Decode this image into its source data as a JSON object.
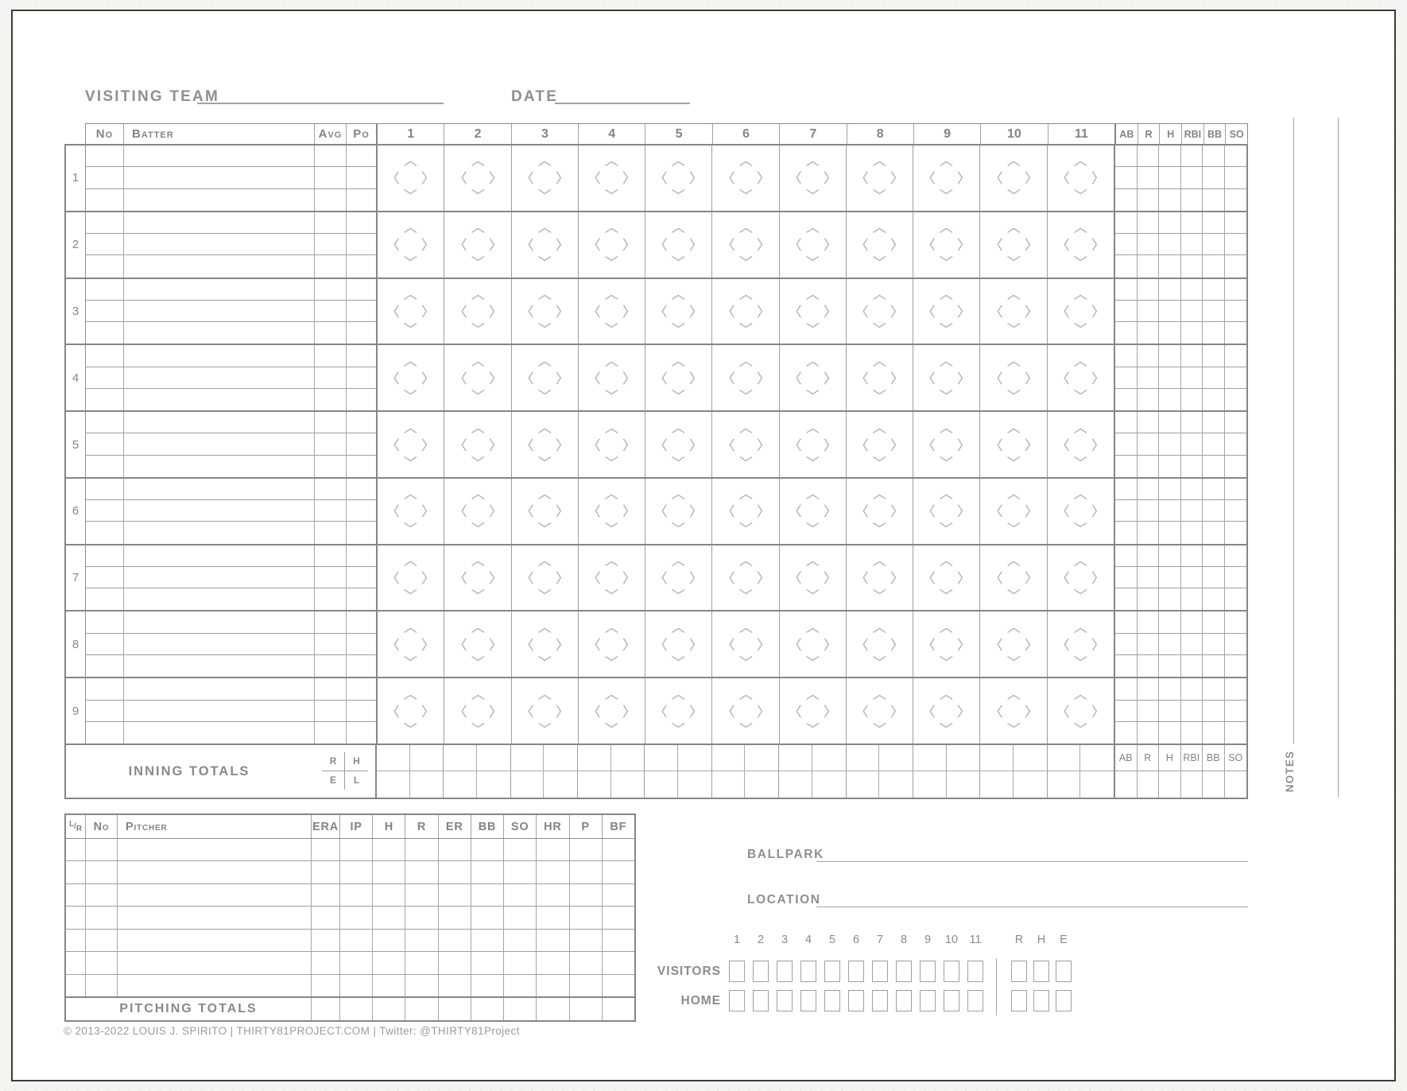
{
  "header": {
    "visiting_team_label": "VISITING TEAM",
    "date_label": "DATE"
  },
  "batting_table": {
    "column_headers": {
      "no": "No",
      "batter": "Batter",
      "avg": "Avg",
      "po": "Po"
    },
    "inning_headers": [
      "1",
      "2",
      "3",
      "4",
      "5",
      "6",
      "7",
      "8",
      "9",
      "10",
      "11"
    ],
    "stat_headers": [
      "AB",
      "R",
      "H",
      "RBI",
      "BB",
      "SO"
    ],
    "batting_order": [
      "1",
      "2",
      "3",
      "4",
      "5",
      "6",
      "7",
      "8",
      "9"
    ],
    "sub_rows_per_batter": 3,
    "inning_totals": {
      "label": "INNING TOTALS",
      "legend": {
        "top_left": "R",
        "top_right": "H",
        "bottom_left": "E",
        "bottom_right": "L"
      }
    }
  },
  "notes": {
    "label": "NOTES"
  },
  "pitching_table": {
    "lr_header": {
      "top": "L",
      "slash": "/",
      "bottom": "R"
    },
    "column_headers": [
      "No",
      "Pitcher",
      "ERA",
      "IP",
      "H",
      "R",
      "ER",
      "BB",
      "SO",
      "HR",
      "P",
      "BF"
    ],
    "data_rows": 7,
    "totals_label": "PITCHING TOTALS"
  },
  "game_info": {
    "ballpark_label": "BALLPARK",
    "location_label": "LOCATION"
  },
  "linescore": {
    "inning_headers": [
      "1",
      "2",
      "3",
      "4",
      "5",
      "6",
      "7",
      "8",
      "9",
      "10",
      "11"
    ],
    "stat_headers": [
      "R",
      "H",
      "E"
    ],
    "team_rows": [
      {
        "label": "VISITORS"
      },
      {
        "label": "HOME"
      }
    ]
  },
  "footer": {
    "copyright": "© 2013-2022 LOUIS J. SPIRITO  |  THIRTY81PROJECT.COM  |  Twitter: @THIRTY81Project"
  },
  "colors": {
    "page_background": "#f5f4f1",
    "sheet_background": "#ffffff",
    "sheet_border": "#3c3c3c",
    "grid_dark": "#868686",
    "grid_mid": "#9e9e9e",
    "grid_light": "#ababab",
    "text_gray": "#8b8b8b",
    "diamond_gray": "#b7b7b7"
  }
}
